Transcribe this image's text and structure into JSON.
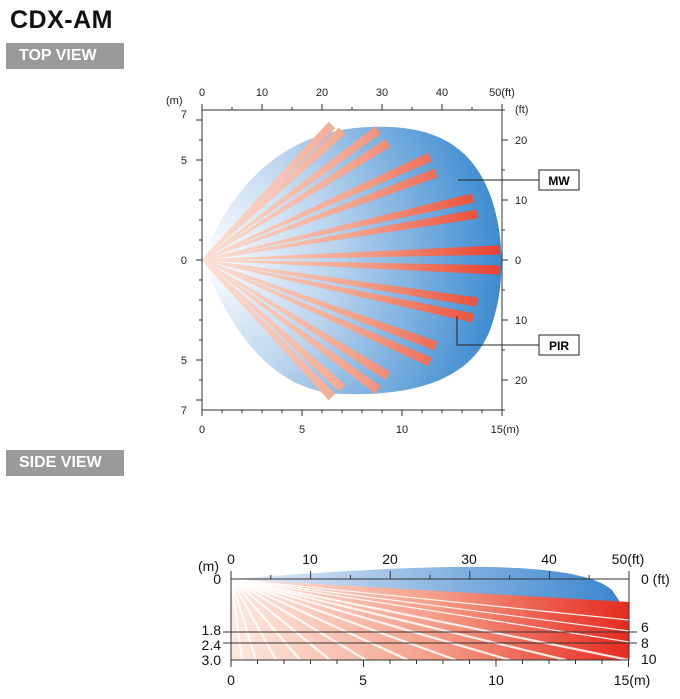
{
  "header": {
    "title": "CDX-AM"
  },
  "sections": {
    "top_view": "TOP VIEW",
    "side_view": "SIDE VIEW"
  },
  "colors": {
    "mw_blue": "#3f8fd2",
    "pir_red": "#ef4e3b",
    "pir_light": "#f6b7a4",
    "tag_gray": "#9a9a9a"
  },
  "top_view": {
    "unit_m": "(m)",
    "unit_ft": "(ft)",
    "top_axis_ft": [
      "0",
      "10",
      "20",
      "30",
      "40",
      "50(ft)"
    ],
    "bottom_axis_m": [
      "0",
      "5",
      "10",
      "15(m)"
    ],
    "left_axis_m": [
      "7",
      "5",
      "0",
      "5",
      "7"
    ],
    "right_axis_ft": [
      "20",
      "10",
      "0",
      "10",
      "20"
    ],
    "labels": {
      "mw": "MW",
      "pir": "PIR"
    }
  },
  "side_view": {
    "unit_m": "(m)",
    "top_axis_ft": [
      "0",
      "10",
      "20",
      "30",
      "40",
      "50(ft)"
    ],
    "bottom_axis_m": [
      "0",
      "5",
      "10",
      "15(m)"
    ],
    "left_axis_m": [
      "0",
      "1.8",
      "2.4",
      "3.0"
    ],
    "right_axis_ft": [
      "0 (ft)",
      "6",
      "8",
      "10"
    ]
  }
}
